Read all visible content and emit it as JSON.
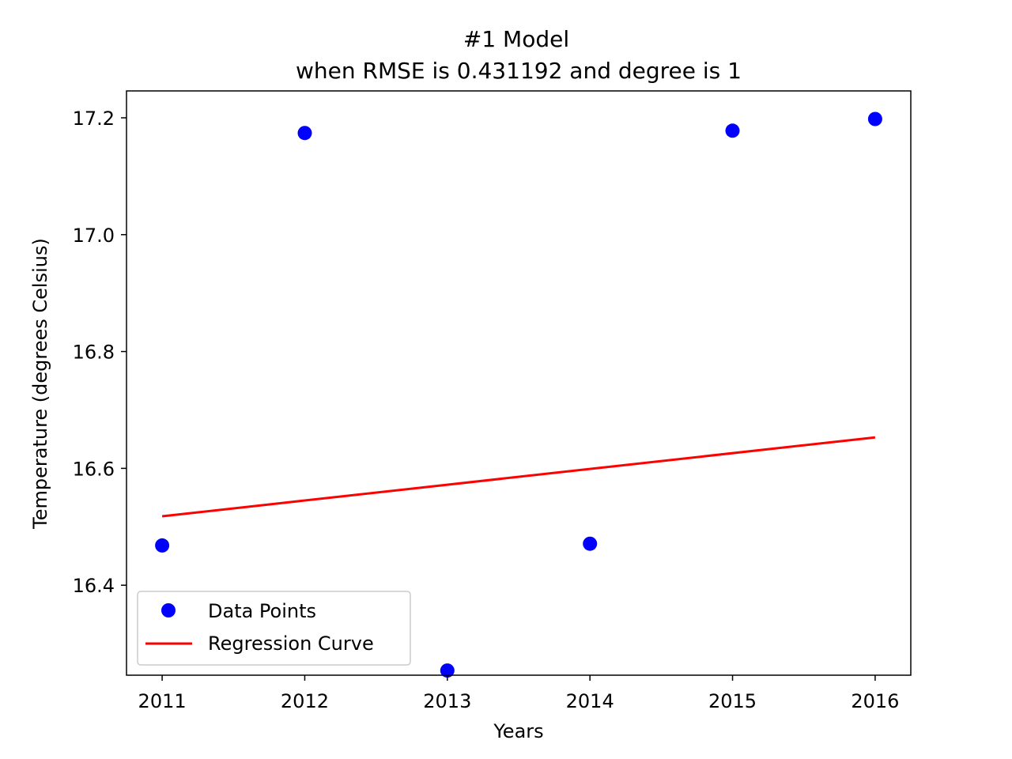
{
  "chart_data": {
    "type": "scatter",
    "title": "#1 Model",
    "subtitle": "when RMSE is 0.431192 and degree is 1",
    "xlabel": "Years",
    "ylabel": "Temperature (degrees Celsius)",
    "xlim": [
      2010.75,
      2016.25
    ],
    "ylim": [
      16.246,
      17.246
    ],
    "x_ticks": [
      2011,
      2012,
      2013,
      2014,
      2015,
      2016
    ],
    "y_ticks": [
      16.4,
      16.6,
      16.8,
      17.0,
      17.2
    ],
    "grid": false,
    "legend_position": "bottom-left",
    "series": [
      {
        "name": "Data Points",
        "kind": "scatter",
        "color": "#0000ff",
        "x": [
          2011,
          2012,
          2013,
          2014,
          2015,
          2016
        ],
        "y": [
          16.468,
          17.174,
          16.254,
          16.471,
          17.178,
          17.198
        ]
      },
      {
        "name": "Regression Curve",
        "kind": "line",
        "color": "#ff0000",
        "x": [
          2011,
          2016
        ],
        "y": [
          16.518,
          16.653
        ]
      }
    ]
  }
}
